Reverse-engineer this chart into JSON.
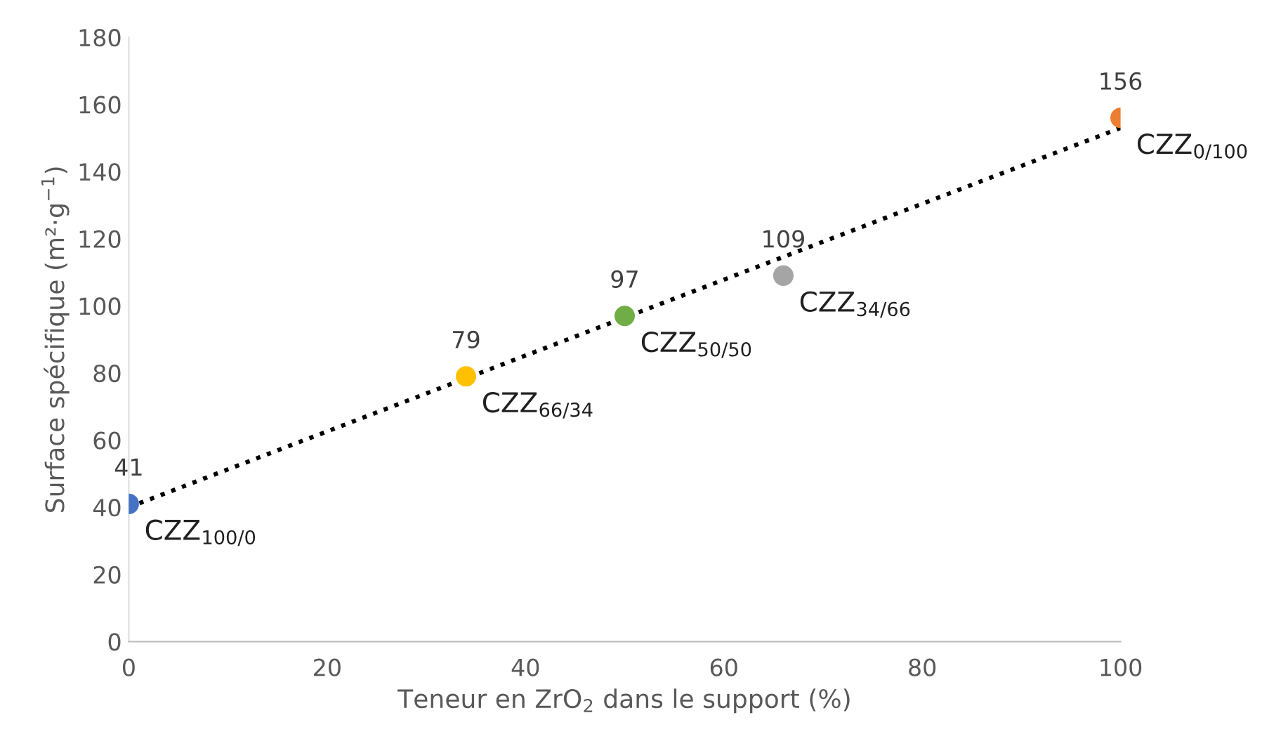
{
  "chart_data": {
    "type": "scatter",
    "xlabel": "Teneur en ZrO$_{2}$ dans le support (%)",
    "ylabel": "Surface spécifique (m²·g$^{−1}$)",
    "xlim": [
      0,
      100
    ],
    "xticks": [
      0,
      20,
      40,
      60,
      80,
      100
    ],
    "ylim": [
      0,
      180
    ],
    "yticks": [
      0,
      20,
      40,
      60,
      80,
      100,
      120,
      140,
      160,
      180
    ],
    "grid": false,
    "marker": "circle",
    "series": [
      {
        "x": [
          0,
          34,
          50,
          66,
          100
        ],
        "values": [
          41,
          79,
          97,
          109,
          156
        ],
        "value_labels": [
          "41",
          "79",
          "97",
          "109",
          "156"
        ],
        "colors": [
          "#4472c4",
          "#ffc000",
          "#70ad47",
          "#a5a5a5",
          "#ed7d31"
        ]
      },
      {
        "type": "line",
        "x": [
          0,
          100
        ],
        "values": [
          40,
          153
        ],
        "color": "#000000",
        "line_style": "dotted",
        "marker": "none"
      }
    ],
    "annotations": [
      {
        "text": "CZZ$_{100/0}$",
        "x": 0,
        "y": 41
      },
      {
        "text": "CZZ$_{66/34}$",
        "x": 34,
        "y": 79
      },
      {
        "text": "CZZ$_{50/50}$",
        "x": 50,
        "y": 97
      },
      {
        "text": "CZZ$_{34/66}$",
        "x": 66,
        "y": 109
      },
      {
        "text": "CZZ$_{0/100}$",
        "x": 100,
        "y": 156
      }
    ]
  }
}
